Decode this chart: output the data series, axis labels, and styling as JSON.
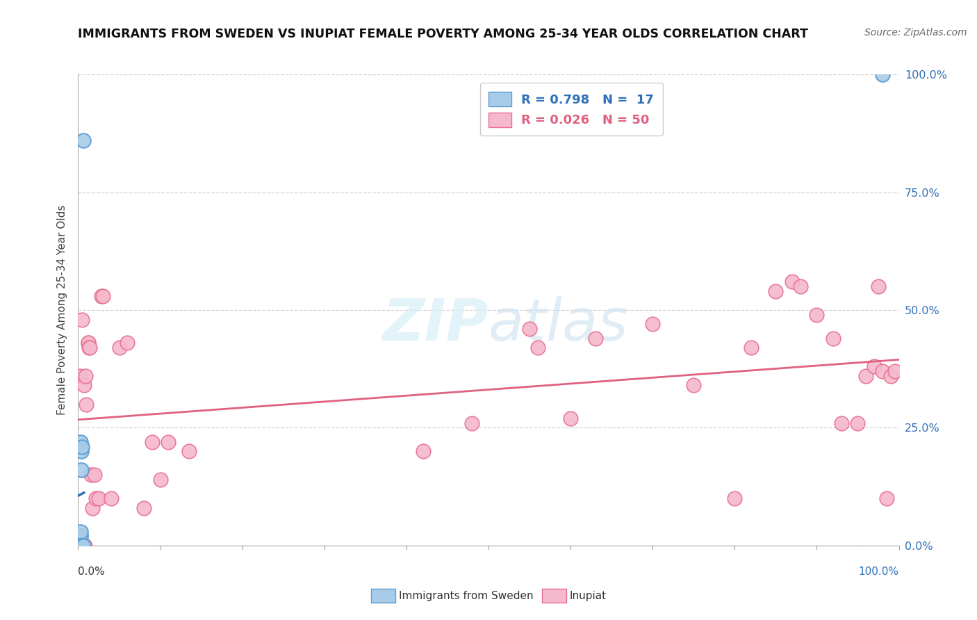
{
  "title": "IMMIGRANTS FROM SWEDEN VS INUPIAT FEMALE POVERTY AMONG 25-34 YEAR OLDS CORRELATION CHART",
  "source": "Source: ZipAtlas.com",
  "ylabel": "Female Poverty Among 25-34 Year Olds",
  "xlim": [
    0,
    1.0
  ],
  "ylim": [
    0,
    1.0
  ],
  "ytick_values": [
    0.0,
    0.25,
    0.5,
    0.75,
    1.0
  ],
  "ytick_labels": [
    "0.0%",
    "25.0%",
    "50.0%",
    "75.0%",
    "100.0%"
  ],
  "xtick_label_left": "0.0%",
  "xtick_label_right": "100.0%",
  "legend_r1": "R = 0.798",
  "legend_n1": "N =  17",
  "legend_r2": "R = 0.026",
  "legend_n2": "N = 50",
  "color_sweden": "#a8cce8",
  "color_sweden_edge": "#5b9bd5",
  "color_sweden_line": "#3070b8",
  "color_inupiat": "#f5b8cc",
  "color_inupiat_edge": "#e87090",
  "color_inupiat_line": "#e06080",
  "watermark_color": "#d8eef8",
  "grid_color": "#d0d0d0",
  "sweden_x": [
    0.002,
    0.002,
    0.003,
    0.003,
    0.003,
    0.003,
    0.003,
    0.003,
    0.004,
    0.004,
    0.004,
    0.004,
    0.005,
    0.005,
    0.006,
    0.006,
    0.98
  ],
  "sweden_y": [
    0.01,
    0.02,
    0.0,
    0.0,
    0.02,
    0.02,
    0.03,
    0.22,
    0.0,
    0.0,
    0.16,
    0.2,
    0.0,
    0.21,
    0.0,
    0.86,
    1.0
  ],
  "inupiat_x": [
    0.002,
    0.005,
    0.006,
    0.007,
    0.008,
    0.009,
    0.01,
    0.012,
    0.012,
    0.013,
    0.014,
    0.016,
    0.017,
    0.02,
    0.022,
    0.025,
    0.028,
    0.03,
    0.04,
    0.05,
    0.06,
    0.08,
    0.09,
    0.1,
    0.11,
    0.135,
    0.42,
    0.48,
    0.55,
    0.56,
    0.6,
    0.63,
    0.7,
    0.75,
    0.8,
    0.82,
    0.85,
    0.87,
    0.88,
    0.9,
    0.92,
    0.93,
    0.95,
    0.96,
    0.97,
    0.975,
    0.98,
    0.985,
    0.99,
    0.995
  ],
  "inupiat_y": [
    0.36,
    0.48,
    0.0,
    0.34,
    0.0,
    0.36,
    0.3,
    0.43,
    0.43,
    0.42,
    0.42,
    0.15,
    0.08,
    0.15,
    0.1,
    0.1,
    0.53,
    0.53,
    0.1,
    0.42,
    0.43,
    0.08,
    0.22,
    0.14,
    0.22,
    0.2,
    0.2,
    0.26,
    0.46,
    0.42,
    0.27,
    0.44,
    0.47,
    0.34,
    0.1,
    0.42,
    0.54,
    0.56,
    0.55,
    0.49,
    0.44,
    0.26,
    0.26,
    0.36,
    0.38,
    0.55,
    0.37,
    0.1,
    0.36,
    0.37
  ]
}
